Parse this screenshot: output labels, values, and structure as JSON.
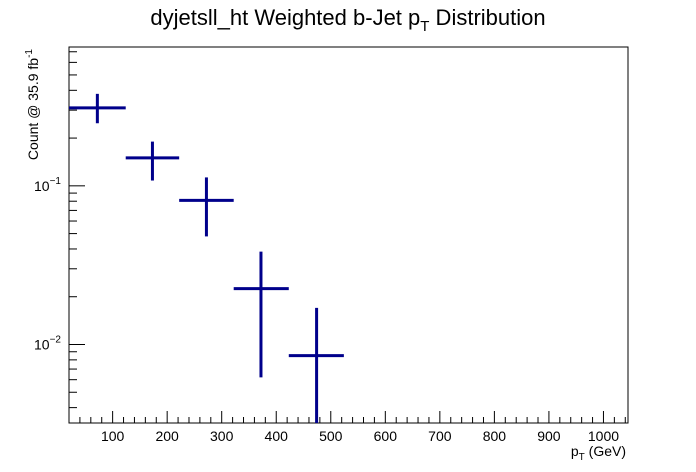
{
  "chart_data": {
    "type": "scatter",
    "style": "error-bars",
    "title_parts": [
      "dyjetsll_ht Weighted b-Jet p",
      "T",
      " Distribution"
    ],
    "xlabel_parts": [
      "p",
      "T",
      " (GeV)"
    ],
    "ylabel_parts": [
      "Count @ 35.9 fb",
      "-1"
    ],
    "xlim": [
      20,
      1045
    ],
    "ylim": [
      0.0032,
      0.75
    ],
    "yscale": "log",
    "grid": false,
    "x_ticks": [
      100,
      200,
      300,
      400,
      500,
      600,
      700,
      800,
      900,
      1000
    ],
    "x_tick_labels": [
      "100",
      "200",
      "300",
      "400",
      "500",
      "600",
      "700",
      "800",
      "900",
      "1000"
    ],
    "y_tick_labels": [
      {
        "value": 0.1,
        "base": "10",
        "exp": "−1"
      },
      {
        "value": 0.01,
        "base": "10",
        "exp": "−2"
      }
    ],
    "color": "#00008b",
    "points": [
      {
        "x": 72,
        "xlo": 20,
        "xhi": 124,
        "y": 0.31,
        "ylo": 0.248,
        "yhi": 0.38
      },
      {
        "x": 173,
        "xlo": 124,
        "xhi": 222,
        "y": 0.15,
        "ylo": 0.108,
        "yhi": 0.19
      },
      {
        "x": 272,
        "xlo": 222,
        "xhi": 322,
        "y": 0.081,
        "ylo": 0.048,
        "yhi": 0.113
      },
      {
        "x": 372,
        "xlo": 322,
        "xhi": 423,
        "y": 0.0225,
        "ylo": 0.0062,
        "yhi": 0.0385
      },
      {
        "x": 474,
        "xlo": 423,
        "xhi": 524,
        "y": 0.0085,
        "ylo": 0.0032,
        "yhi": 0.017
      }
    ]
  }
}
